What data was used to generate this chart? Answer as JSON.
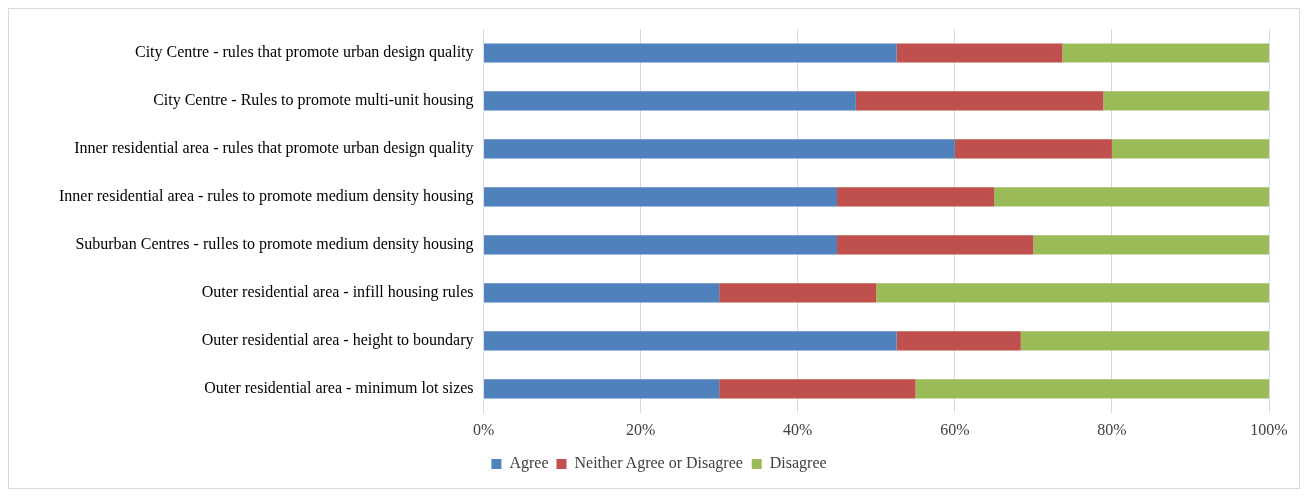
{
  "chart_data": {
    "type": "bar",
    "orientation": "horizontal",
    "stacked": true,
    "categories": [
      "City Centre - rules that promote urban design quality",
      "City Centre - Rules to promote multi-unit housing",
      "Inner residential area - rules that promote urban design quality",
      "Inner residential area - rules to promote medium density housing",
      "Suburban Centres - rulles to promote medium density housing",
      "Outer residential area - infill housing rules",
      "Outer residential area - height to boundary",
      "Outer residential area - minimum lot sizes"
    ],
    "series": [
      {
        "name": "Agree",
        "color": "#4f81bd",
        "values": [
          52.6,
          47.4,
          60,
          45,
          45,
          30,
          52.6,
          30
        ]
      },
      {
        "name": "Neither Agree or Disagree",
        "color": "#c0504d",
        "values": [
          21.1,
          31.5,
          20,
          20,
          25,
          20,
          15.8,
          25
        ]
      },
      {
        "name": "Disagree",
        "color": "#9bbb59",
        "values": [
          26.3,
          21.1,
          20,
          35,
          30,
          50,
          31.6,
          45
        ]
      }
    ],
    "xlim": [
      0,
      100
    ],
    "xticks": [
      {
        "value": 0,
        "label": "0%"
      },
      {
        "value": 20,
        "label": "20%"
      },
      {
        "value": 40,
        "label": "40%"
      },
      {
        "value": 60,
        "label": "60%"
      },
      {
        "value": 80,
        "label": "80%"
      },
      {
        "value": 100,
        "label": "100%"
      }
    ],
    "grid": "x",
    "legend": "bottom"
  }
}
